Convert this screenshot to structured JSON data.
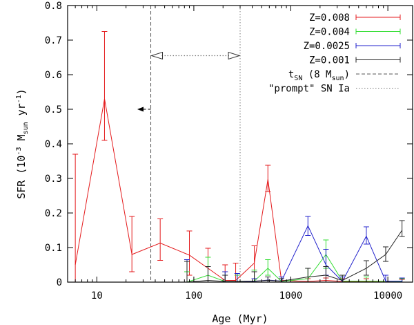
{
  "chart_data": {
    "type": "line",
    "title": "",
    "xlabel": "Age (Myr)",
    "ylabel": {
      "prefix": "SFR (10",
      "exp": "-3",
      "mid": " M",
      "sub": "sun",
      "mid2": " yr",
      "exp2": "-1",
      "suffix": ")"
    },
    "xscale": "log",
    "xlim": [
      5,
      18000
    ],
    "ylim": [
      0,
      0.8
    ],
    "xticks": [
      {
        "value": 10,
        "label": "10"
      },
      {
        "value": 100,
        "label": "100"
      },
      {
        "value": 1000,
        "label": "1000"
      },
      {
        "value": 10000,
        "label": "10000"
      }
    ],
    "yticks": [
      {
        "value": 0,
        "label": "0"
      },
      {
        "value": 0.1,
        "label": "0.1"
      },
      {
        "value": 0.2,
        "label": "0.2"
      },
      {
        "value": 0.3,
        "label": "0.3"
      },
      {
        "value": 0.4,
        "label": "0.4"
      },
      {
        "value": 0.5,
        "label": "0.5"
      },
      {
        "value": 0.6,
        "label": "0.6"
      },
      {
        "value": 0.7,
        "label": "0.7"
      },
      {
        "value": 0.8,
        "label": "0.8"
      }
    ],
    "series": [
      {
        "name": "Z=0.008",
        "color": "#e41a1c",
        "points": [
          {
            "x": 6,
            "y": 0.05,
            "lo": 0,
            "hi": 0.37
          },
          {
            "x": 12,
            "y": 0.53,
            "lo": 0.41,
            "hi": 0.725
          },
          {
            "x": 23,
            "y": 0.08,
            "lo": 0.03,
            "hi": 0.19
          },
          {
            "x": 45,
            "y": 0.113,
            "lo": 0.063,
            "hi": 0.183
          },
          {
            "x": 90,
            "y": 0.078,
            "lo": 0.02,
            "hi": 0.148
          },
          {
            "x": 140,
            "y": 0.04,
            "lo": 0.0,
            "hi": 0.098
          },
          {
            "x": 210,
            "y": 0.005,
            "lo": 0.0,
            "hi": 0.05
          },
          {
            "x": 270,
            "y": 0.005,
            "lo": 0.0,
            "hi": 0.055
          },
          {
            "x": 420,
            "y": 0.055,
            "lo": 0.01,
            "hi": 0.105
          },
          {
            "x": 580,
            "y": 0.297,
            "lo": 0.262,
            "hi": 0.338
          },
          {
            "x": 800,
            "y": 0.005,
            "lo": 0.0,
            "hi": 0.015
          },
          {
            "x": 1500,
            "y": 0.002,
            "lo": 0.0,
            "hi": 0.01
          },
          {
            "x": 2300,
            "y": 0.005,
            "lo": 0.0,
            "hi": 0.012
          },
          {
            "x": 3400,
            "y": 0.002,
            "lo": 0.0,
            "hi": 0.01
          },
          {
            "x": 6000,
            "y": 0.002,
            "lo": 0.0,
            "hi": 0.01
          },
          {
            "x": 14000,
            "y": 0.002,
            "lo": 0.0,
            "hi": 0.008
          }
        ]
      },
      {
        "name": "Z=0.004",
        "color": "#33dd33",
        "points": [
          {
            "x": 85,
            "y": 0.0,
            "lo": 0.0,
            "hi": 0.03
          },
          {
            "x": 140,
            "y": 0.02,
            "lo": 0.0,
            "hi": 0.072
          },
          {
            "x": 210,
            "y": 0.002,
            "lo": 0.0,
            "hi": 0.03
          },
          {
            "x": 280,
            "y": 0.0,
            "lo": 0.0,
            "hi": 0.02
          },
          {
            "x": 420,
            "y": 0.003,
            "lo": 0.0,
            "hi": 0.035
          },
          {
            "x": 580,
            "y": 0.04,
            "lo": 0.02,
            "hi": 0.065
          },
          {
            "x": 800,
            "y": 0.002,
            "lo": 0.0,
            "hi": 0.015
          },
          {
            "x": 1500,
            "y": 0.01,
            "lo": 0.0,
            "hi": 0.04
          },
          {
            "x": 2300,
            "y": 0.08,
            "lo": 0.04,
            "hi": 0.122
          },
          {
            "x": 3400,
            "y": 0.003,
            "lo": 0.0,
            "hi": 0.02
          },
          {
            "x": 6000,
            "y": 0.003,
            "lo": 0.0,
            "hi": 0.015
          },
          {
            "x": 14000,
            "y": 0.002,
            "lo": 0.0,
            "hi": 0.01
          }
        ]
      },
      {
        "name": "Z=0.0025",
        "color": "#2222cc",
        "points": [
          {
            "x": 85,
            "y": 0.0,
            "lo": 0.0,
            "hi": 0.065
          },
          {
            "x": 140,
            "y": 0.0,
            "lo": 0.0,
            "hi": 0.045
          },
          {
            "x": 210,
            "y": 0.0,
            "lo": 0.0,
            "hi": 0.03
          },
          {
            "x": 280,
            "y": 0.0,
            "lo": 0.0,
            "hi": 0.025
          },
          {
            "x": 420,
            "y": 0.002,
            "lo": 0.0,
            "hi": 0.01
          },
          {
            "x": 580,
            "y": 0.006,
            "lo": 0.0,
            "hi": 0.015
          },
          {
            "x": 800,
            "y": 0.003,
            "lo": 0.0,
            "hi": 0.015
          },
          {
            "x": 1500,
            "y": 0.163,
            "lo": 0.135,
            "hi": 0.19
          },
          {
            "x": 2300,
            "y": 0.05,
            "lo": 0.02,
            "hi": 0.095
          },
          {
            "x": 3400,
            "y": 0.002,
            "lo": 0.0,
            "hi": 0.015
          },
          {
            "x": 6000,
            "y": 0.133,
            "lo": 0.11,
            "hi": 0.16
          },
          {
            "x": 9500,
            "y": 0.003,
            "lo": 0.0,
            "hi": 0.02
          },
          {
            "x": 14000,
            "y": 0.003,
            "lo": 0.0,
            "hi": 0.012
          }
        ]
      },
      {
        "name": "Z=0.001",
        "color": "#222222",
        "points": [
          {
            "x": 85,
            "y": 0.0,
            "lo": 0.0,
            "hi": 0.06
          },
          {
            "x": 140,
            "y": 0.005,
            "lo": 0.0,
            "hi": 0.045
          },
          {
            "x": 210,
            "y": 0.002,
            "lo": 0.0,
            "hi": 0.02
          },
          {
            "x": 420,
            "y": 0.003,
            "lo": 0.0,
            "hi": 0.03
          },
          {
            "x": 580,
            "y": 0.005,
            "lo": 0.0,
            "hi": 0.015
          },
          {
            "x": 800,
            "y": 0.003,
            "lo": 0.0,
            "hi": 0.01
          },
          {
            "x": 1500,
            "y": 0.015,
            "lo": 0.0,
            "hi": 0.04
          },
          {
            "x": 2300,
            "y": 0.02,
            "lo": 0.0,
            "hi": 0.045
          },
          {
            "x": 3400,
            "y": 0.005,
            "lo": 0.0,
            "hi": 0.02
          },
          {
            "x": 6000,
            "y": 0.04,
            "lo": 0.02,
            "hi": 0.062
          },
          {
            "x": 9500,
            "y": 0.08,
            "lo": 0.06,
            "hi": 0.102
          },
          {
            "x": 14000,
            "y": 0.15,
            "lo": 0.132,
            "hi": 0.178
          }
        ]
      }
    ],
    "vlines": [
      {
        "x": 36,
        "style": "dashed",
        "color": "#555555"
      },
      {
        "x": 300,
        "style": "dotted",
        "color": "#777777"
      }
    ],
    "annotations": {
      "double_arrow": {
        "x1": 36,
        "x2": 300,
        "y": 0.655
      },
      "left_arrow": {
        "from_x": 36,
        "to_x": 27,
        "y": 0.5
      }
    },
    "legend": {
      "position": "top-right",
      "entries": [
        {
          "name": "Z=0.008",
          "color": "#e41a1c",
          "kind": "errorbar"
        },
        {
          "name": "Z=0.004",
          "color": "#33dd33",
          "kind": "errorbar"
        },
        {
          "name": "Z=0.0025",
          "color": "#2222cc",
          "kind": "errorbar"
        },
        {
          "name": "Z=0.001",
          "color": "#222222",
          "kind": "errorbar"
        },
        {
          "name": "tSN (8 Msun)",
          "label": {
            "t": "t",
            "tsub": "SN",
            "mid": " (8 M",
            "msub": "sun",
            "end": ")"
          },
          "color": "#555555",
          "kind": "dashed"
        },
        {
          "name": "\"prompt\" SN Ia",
          "color": "#777777",
          "kind": "dotted"
        }
      ]
    }
  }
}
